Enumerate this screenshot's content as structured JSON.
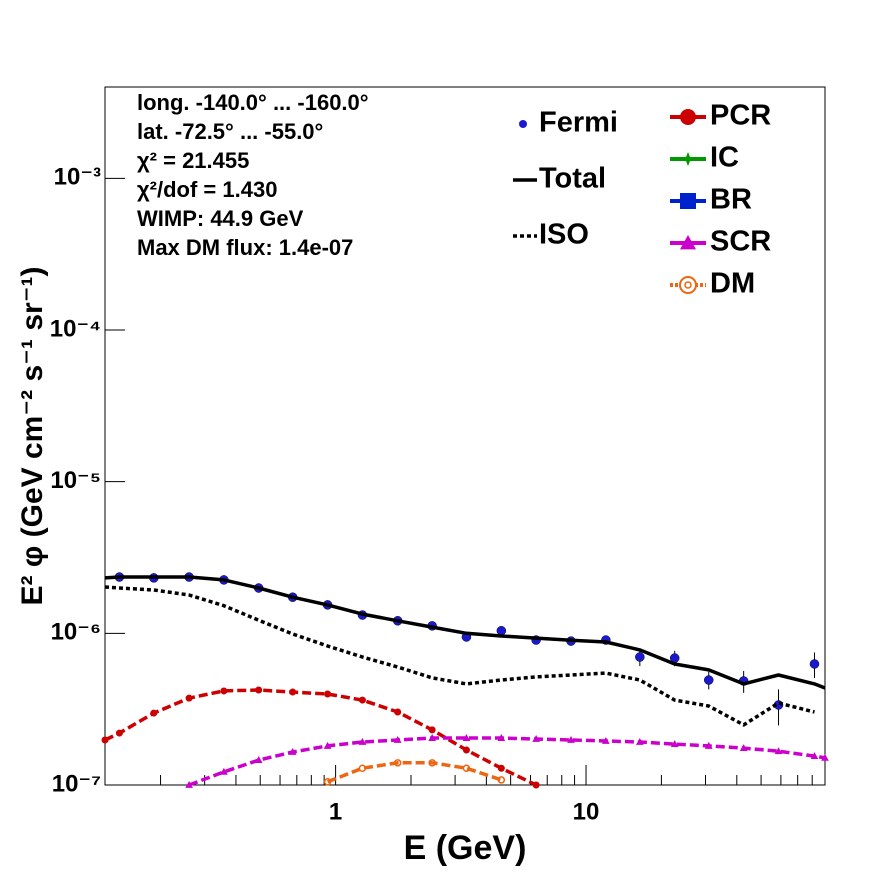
{
  "chart_data": {
    "type": "line",
    "xlabel": "E (GeV)",
    "ylabel": "E² φ (GeV cm⁻² s⁻¹ sr⁻¹)",
    "xlog": true,
    "ylog": true,
    "xlim": [
      0.12,
      90
    ],
    "ylim": [
      1e-07,
      0.004
    ],
    "xticks": [
      1,
      10
    ],
    "xminorticks": [
      0.2,
      0.3,
      0.4,
      0.5,
      0.6,
      0.7,
      0.8,
      0.9,
      2,
      3,
      4,
      5,
      6,
      7,
      8,
      9,
      20,
      30,
      40,
      50,
      60,
      70,
      80
    ],
    "yticks": [
      {
        "value": 1e-07,
        "label": "10⁻⁷"
      },
      {
        "value": 1e-06,
        "label": "10⁻⁶"
      },
      {
        "value": 1e-05,
        "label": "10⁻⁵"
      },
      {
        "value": 0.0001,
        "label": "10⁻⁴"
      },
      {
        "value": 0.001,
        "label": "10⁻³"
      }
    ],
    "annotations": [
      "long. -140.0° ... -160.0°",
      "lat. -72.5° ... -55.0°",
      "χ² = 21.455",
      "χ²/dof = 1.430",
      "WIMP: 44.9 GeV",
      "Max DM flux: 1.4e-07"
    ],
    "x": [
      0.12,
      0.137,
      0.188,
      0.26,
      0.358,
      0.493,
      0.674,
      0.929,
      1.28,
      1.77,
      2.43,
      3.33,
      4.59,
      6.32,
      8.71,
      12.0,
      16.4,
      22.6,
      30.9,
      42.6,
      58.7,
      81.7,
      90
    ],
    "series": [
      {
        "name": "Fermi",
        "color": "#1a1acc",
        "style": "points",
        "values": [
          null,
          2.35e-06,
          2.32e-06,
          2.35e-06,
          2.25e-06,
          1.99e-06,
          1.73e-06,
          1.54e-06,
          1.32e-06,
          1.21e-06,
          1.12e-06,
          9.46e-07,
          1.04e-06,
          9.03e-07,
          8.89e-07,
          9.03e-07,
          6.98e-07,
          6.87e-07,
          4.92e-07,
          4.85e-07,
          3.37e-07,
          6.28e-07,
          null
        ],
        "errors": [
          null,
          5e-08,
          5e-08,
          5e-08,
          5e-08,
          4e-08,
          4e-08,
          4e-08,
          3e-08,
          3e-08,
          3e-08,
          3e-08,
          4e-08,
          3e-08,
          5e-08,
          4e-08,
          9e-08,
          8e-08,
          6.5e-08,
          8e-08,
          9e-08,
          1.2e-07,
          null
        ]
      },
      {
        "name": "Total",
        "color": "#000000",
        "style": "solid",
        "values": [
          2.32e-06,
          2.35e-06,
          2.35e-06,
          2.35e-06,
          2.25e-06,
          1.99e-06,
          1.73e-06,
          1.54e-06,
          1.34e-06,
          1.21e-06,
          1.1e-06,
          1e-06,
          9.6e-07,
          9.3e-07,
          9e-07,
          8.76e-07,
          7.77e-07,
          6.28e-07,
          5.74e-07,
          4.64e-07,
          5.31e-07,
          4.64e-07,
          4.36e-07
        ]
      },
      {
        "name": "ISO",
        "color": "#000000",
        "style": "dotted",
        "values": [
          2.02e-06,
          1.99e-06,
          1.93e-06,
          1.79e-06,
          1.52e-06,
          1.22e-06,
          9.9e-07,
          8.25e-07,
          6.98e-07,
          6e-07,
          5.08e-07,
          4.64e-07,
          4.92e-07,
          5.16e-07,
          5.31e-07,
          5.47e-07,
          4.92e-07,
          3.63e-07,
          3.32e-07,
          2.49e-07,
          3.47e-07,
          3.03e-07,
          null
        ]
      },
      {
        "name": "PCR",
        "color": "#cc0000",
        "style": "dashed",
        "marker": "circle",
        "values": [
          1.98e-07,
          2.2e-07,
          2.98e-07,
          3.74e-07,
          4.17e-07,
          4.23e-07,
          4.1e-07,
          3.98e-07,
          3.63e-07,
          3.03e-07,
          2.31e-07,
          1.7e-07,
          1.29e-07,
          1e-07,
          null,
          null,
          null,
          null,
          null,
          null,
          null,
          null,
          null
        ]
      },
      {
        "name": "IC",
        "color": "#009900",
        "style": "dashed",
        "marker": "star",
        "values": [
          null,
          null,
          null,
          null,
          null,
          null,
          null,
          null,
          null,
          null,
          null,
          null,
          null,
          null,
          null,
          null,
          null,
          null,
          null,
          null,
          null,
          null,
          null
        ]
      },
      {
        "name": "BR",
        "color": "#0022cc",
        "style": "dashed",
        "marker": "square",
        "values": [
          null,
          null,
          null,
          null,
          null,
          null,
          null,
          null,
          null,
          null,
          null,
          null,
          null,
          null,
          null,
          null,
          null,
          null,
          null,
          null,
          null,
          null,
          null
        ]
      },
      {
        "name": "SCR",
        "color": "#cc00cc",
        "style": "dashed",
        "marker": "triangle",
        "values": [
          null,
          null,
          null,
          1e-07,
          1.22e-07,
          1.46e-07,
          1.65e-07,
          1.81e-07,
          1.92e-07,
          1.98e-07,
          2.04e-07,
          2.04e-07,
          2.04e-07,
          2.01e-07,
          1.98e-07,
          1.95e-07,
          1.92e-07,
          1.86e-07,
          1.81e-07,
          1.75e-07,
          1.67e-07,
          1.55e-07,
          1.51e-07
        ]
      },
      {
        "name": "DM",
        "color": "#ee6611",
        "style": "dashed",
        "marker": "open-circle",
        "values": [
          null,
          null,
          null,
          null,
          null,
          null,
          null,
          1.05e-07,
          1.29e-07,
          1.4e-07,
          1.4e-07,
          1.29e-07,
          1.08e-07,
          null,
          null,
          null,
          null,
          null,
          null,
          null,
          null,
          null,
          null
        ]
      }
    ]
  }
}
